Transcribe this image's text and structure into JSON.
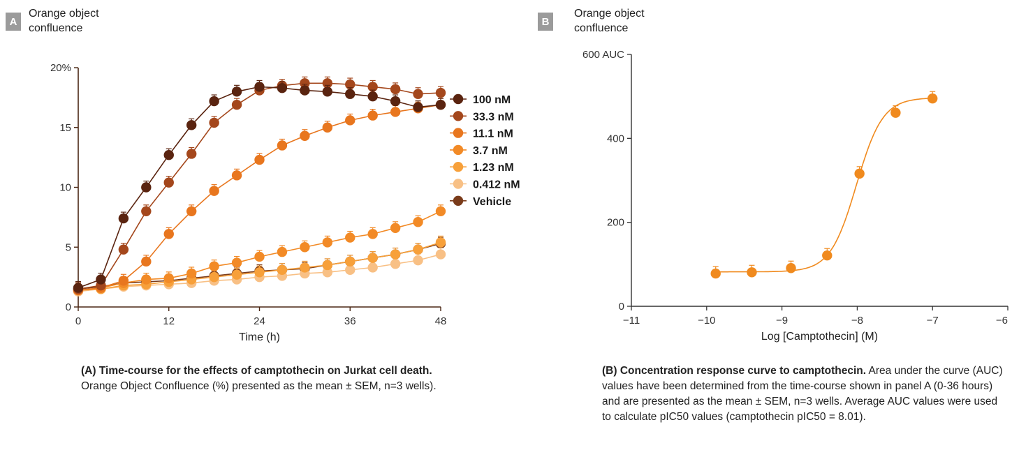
{
  "panel_a": {
    "badge": "A",
    "ylabel_line1": "Orange object",
    "ylabel_line2": "confluence",
    "caption_bold": "(A) Time-course for the effects of camptothecin on Jurkat cell death.",
    "caption_text": " Orange Object Confluence (%) presented as the mean ± SEM, n=3 wells)."
  },
  "panel_b": {
    "badge": "B",
    "ylabel_line1": "Orange object",
    "ylabel_line2": "confluence",
    "caption_bold": "(B) Concentration response curve to camptothecin.",
    "caption_text": " Area under the curve (AUC) values have been determined from the time-course shown in panel A (0-36 hours) and are presented as the mean ± SEM, n=3 wells.  Average AUC values were used to calculate pIC50 values (camptothecin pIC50 = 8.01)."
  },
  "chart_data": [
    {
      "type": "line",
      "xlabel": "Time (h)",
      "ylabel": "Orange object confluence",
      "xlim": [
        0,
        48
      ],
      "ylim": [
        0,
        20
      ],
      "x_ticks": [
        "0",
        "12",
        "24",
        "36",
        "48"
      ],
      "y_ticks": [
        "0",
        "5",
        "10",
        "15",
        "20%"
      ],
      "legend_position": "right",
      "x": [
        0,
        3,
        6,
        9,
        12,
        15,
        18,
        21,
        24,
        27,
        30,
        33,
        36,
        39,
        42,
        45,
        48
      ],
      "series": [
        {
          "name": "100 nM",
          "color": "#5a2410",
          "values": [
            1.6,
            2.3,
            7.4,
            10.0,
            12.7,
            15.2,
            17.2,
            18.0,
            18.4,
            18.3,
            18.1,
            18.0,
            17.8,
            17.6,
            17.2,
            16.7,
            16.9
          ]
        },
        {
          "name": "33.3 nM",
          "color": "#a4471c",
          "values": [
            1.5,
            1.8,
            4.8,
            8.0,
            10.4,
            12.8,
            15.4,
            16.9,
            18.1,
            18.5,
            18.7,
            18.7,
            18.6,
            18.4,
            18.2,
            17.8,
            17.9
          ]
        },
        {
          "name": "11.1 nM",
          "color": "#e8761e",
          "values": [
            1.4,
            1.6,
            2.2,
            3.8,
            6.1,
            8.0,
            9.7,
            11.0,
            12.3,
            13.5,
            14.3,
            15.0,
            15.6,
            16.0,
            16.3,
            16.6,
            16.9
          ]
        },
        {
          "name": "3.7 nM",
          "color": "#f28a26",
          "values": [
            1.4,
            1.6,
            2.0,
            2.3,
            2.4,
            2.8,
            3.4,
            3.7,
            4.2,
            4.6,
            5.0,
            5.4,
            5.8,
            6.1,
            6.6,
            7.1,
            8.0
          ]
        },
        {
          "name": "1.23 nM",
          "color": "#f7a03a",
          "values": [
            1.4,
            1.5,
            1.8,
            1.9,
            2.1,
            2.3,
            2.5,
            2.7,
            2.9,
            3.1,
            3.3,
            3.5,
            3.8,
            4.1,
            4.4,
            4.8,
            5.4
          ]
        },
        {
          "name": "0.412 nM",
          "color": "#f8c085",
          "values": [
            1.3,
            1.5,
            1.7,
            1.8,
            1.9,
            2.0,
            2.2,
            2.3,
            2.5,
            2.6,
            2.8,
            2.9,
            3.1,
            3.3,
            3.6,
            3.9,
            4.4
          ]
        },
        {
          "name": "Vehicle",
          "color": "#7a3b1a",
          "values": [
            1.5,
            1.7,
            2.0,
            2.1,
            2.2,
            2.4,
            2.6,
            2.8,
            3.0,
            3.1,
            3.2,
            3.5,
            3.8,
            4.1,
            4.4,
            4.8,
            5.3
          ]
        }
      ]
    },
    {
      "type": "scatter",
      "xlabel": "Log [Camptothecin] (M)",
      "ylabel": "Orange object confluence",
      "xlim": [
        -11,
        -6
      ],
      "ylim": [
        0,
        600
      ],
      "x_ticks": [
        "-11",
        "-10",
        "-9",
        "-8",
        "-7",
        "-6"
      ],
      "y_ticks": [
        "0",
        "200",
        "400",
        "600 AUC"
      ],
      "color": "#f08a1e",
      "points": {
        "x": [
          -9.88,
          -9.4,
          -8.88,
          -8.4,
          -7.97,
          -7.49,
          -7.0
        ],
        "y": [
          78,
          81,
          91,
          121,
          316,
          461,
          495
        ]
      },
      "fit": {
        "bottom": 82,
        "top": 497,
        "log_ic50": -8.01,
        "hill": 2.5
      },
      "annotation": "pIC50 = 8.01"
    }
  ]
}
